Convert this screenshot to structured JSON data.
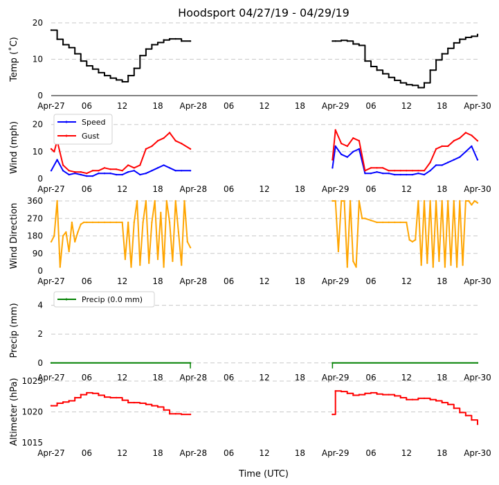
{
  "title": "Hoodsport 04/27/19 - 04/29/19",
  "xlabel": "Time (UTC)",
  "x_ticks": [
    {
      "hour": 0,
      "label": "Apr-27"
    },
    {
      "hour": 6,
      "label": "06"
    },
    {
      "hour": 12,
      "label": "12"
    },
    {
      "hour": 18,
      "label": "18"
    },
    {
      "hour": 24,
      "label": "Apr-28"
    },
    {
      "hour": 30,
      "label": "06"
    },
    {
      "hour": 36,
      "label": "12"
    },
    {
      "hour": 42,
      "label": "18"
    },
    {
      "hour": 48,
      "label": "Apr-29"
    },
    {
      "hour": 54,
      "label": "06"
    },
    {
      "hour": 60,
      "label": "12"
    },
    {
      "hour": 66,
      "label": "18"
    },
    {
      "hour": 72,
      "label": "Apr-30"
    }
  ],
  "chart_data": [
    {
      "type": "line",
      "key": "temp",
      "ylabel": "Temp ($^\\circ$C)",
      "ylabel_display": "Temp (˚C)",
      "ylim": [
        0,
        20
      ],
      "yticks": [
        0,
        10,
        20
      ],
      "x_range_hours": [
        0,
        72
      ],
      "grid": true,
      "series": [
        {
          "name": "Temperature",
          "color": "#000000",
          "step": true,
          "x": [
            0,
            1,
            2,
            3,
            4,
            5,
            6,
            7,
            8,
            9,
            10,
            11,
            12,
            13,
            14,
            15,
            16,
            17,
            18,
            19,
            20,
            21,
            22,
            23.5
          ],
          "y": [
            18,
            15.5,
            14,
            13.2,
            11.5,
            9.5,
            8.2,
            7.3,
            6.3,
            5.5,
            4.8,
            4.3,
            3.8,
            5.5,
            7.5,
            11,
            12.8,
            14,
            14.6,
            15.3,
            15.6,
            15.6,
            15,
            15
          ]
        },
        {
          "name": "Temperature (Apr-29)",
          "color": "#000000",
          "step": true,
          "x": [
            47.5,
            48,
            49,
            50,
            51,
            52,
            53,
            54,
            55,
            56,
            57,
            58,
            59,
            60,
            61,
            62,
            63,
            64,
            65,
            66,
            67,
            68,
            69,
            70,
            71,
            72
          ],
          "y": [
            15,
            15,
            15.2,
            15,
            14.2,
            13.8,
            9.5,
            8,
            7,
            6,
            5,
            4.2,
            3.5,
            3,
            2.8,
            2.2,
            3.5,
            7,
            9.8,
            11.5,
            13,
            14.5,
            15.5,
            16,
            16.3,
            16.8
          ]
        }
      ]
    },
    {
      "type": "line",
      "key": "wind",
      "ylabel": "Wind (mph)",
      "ylim": [
        0,
        23
      ],
      "yticks": [
        0,
        10,
        20
      ],
      "x_range_hours": [
        0,
        72
      ],
      "grid": true,
      "legend": {
        "placement": "top-left",
        "entries": [
          "Speed",
          "Gust"
        ]
      },
      "series": [
        {
          "name": "Speed",
          "color": "#0000ff",
          "x": [
            0,
            1,
            2,
            3,
            4,
            5,
            6,
            7,
            8,
            9,
            10,
            11,
            12,
            13,
            14,
            15,
            16,
            17,
            18,
            19,
            20,
            21,
            22,
            23.5
          ],
          "y": [
            3,
            7,
            3,
            1.5,
            2,
            1.5,
            1,
            1,
            2,
            2,
            2,
            1.5,
            1.5,
            2.5,
            3,
            1.5,
            2,
            3,
            4,
            5,
            4,
            3,
            3,
            3
          ]
        },
        {
          "name": "Gust",
          "color": "#ff0000",
          "x": [
            0,
            0.5,
            1,
            2,
            3,
            4,
            5,
            6,
            7,
            8,
            9,
            10,
            11,
            12,
            13,
            14,
            15,
            16,
            17,
            18,
            19,
            20,
            21,
            22,
            23.5
          ],
          "y": [
            11,
            10,
            14,
            5,
            3,
            2.5,
            2.5,
            2,
            3,
            3,
            4,
            3.5,
            3.5,
            3,
            5,
            4,
            5,
            11,
            12,
            14,
            15,
            17,
            14,
            13,
            11
          ]
        },
        {
          "name": "Speed (Apr-29)",
          "color": "#0000ff",
          "x": [
            47.5,
            48,
            49,
            50,
            51,
            52,
            53,
            54,
            55,
            56,
            57,
            58,
            59,
            60,
            61,
            62,
            63,
            64,
            65,
            66,
            67,
            68,
            69,
            70,
            71,
            72
          ],
          "y": [
            4,
            12,
            9,
            8,
            10,
            11,
            2,
            2,
            2.5,
            2,
            2,
            1.5,
            1.5,
            1.5,
            1.5,
            2,
            1.5,
            3,
            5,
            5,
            6,
            7,
            8,
            10,
            12,
            7
          ]
        },
        {
          "name": "Gust (Apr-29)",
          "color": "#ff0000",
          "x": [
            47.5,
            48,
            49,
            50,
            51,
            52,
            53,
            54,
            55,
            56,
            57,
            58,
            59,
            60,
            61,
            62,
            63,
            64,
            65,
            66,
            67,
            68,
            69,
            70,
            71,
            72
          ],
          "y": [
            7,
            18,
            13,
            12,
            15,
            14,
            3,
            4,
            4,
            4,
            3,
            3,
            3,
            3,
            3,
            3,
            3,
            6,
            11,
            12,
            12,
            14,
            15,
            17,
            16,
            14
          ]
        }
      ]
    },
    {
      "type": "line",
      "key": "wdir",
      "ylabel": "Wind Direction",
      "ylim": [
        0,
        360
      ],
      "yticks": [
        0,
        90,
        180,
        270,
        360
      ],
      "x_range_hours": [
        0,
        72
      ],
      "grid": true,
      "series": [
        {
          "name": "Wind Direction",
          "color": "#ffa500",
          "x": [
            0,
            0.5,
            1,
            1.5,
            2,
            2.5,
            3,
            3.5,
            4,
            4.5,
            5,
            5.5,
            6,
            7,
            8,
            9,
            10,
            11,
            12,
            12.5,
            13,
            13.5,
            14,
            14.5,
            15,
            15.5,
            16,
            16.5,
            17,
            17.5,
            18,
            18.5,
            19,
            19.5,
            20,
            20.5,
            21,
            21.5,
            22,
            22.5,
            23,
            23.5
          ],
          "y": [
            150,
            180,
            360,
            20,
            180,
            200,
            100,
            250,
            150,
            200,
            240,
            250,
            250,
            250,
            250,
            250,
            250,
            250,
            250,
            60,
            250,
            20,
            250,
            360,
            30,
            250,
            360,
            40,
            250,
            360,
            60,
            300,
            20,
            360,
            250,
            50,
            360,
            200,
            30,
            360,
            150,
            120
          ]
        },
        {
          "name": "Wind Direction (Apr-29)",
          "color": "#ffa500",
          "x": [
            47.5,
            48,
            48.5,
            49,
            49.5,
            50,
            50.5,
            51,
            51.5,
            52,
            52.5,
            53,
            54,
            55,
            56,
            57,
            58,
            59,
            60,
            60.5,
            61,
            61.5,
            62,
            62.5,
            63,
            63.5,
            64,
            64.5,
            65,
            65.5,
            66,
            66.5,
            67,
            67.5,
            68,
            68.5,
            69,
            69.5,
            70,
            70.5,
            71,
            71.5,
            72
          ],
          "y": [
            360,
            360,
            100,
            360,
            360,
            20,
            360,
            50,
            20,
            360,
            270,
            270,
            260,
            250,
            250,
            250,
            250,
            250,
            250,
            160,
            150,
            160,
            360,
            30,
            360,
            40,
            360,
            20,
            360,
            50,
            360,
            20,
            360,
            30,
            360,
            20,
            360,
            30,
            360,
            360,
            340,
            360,
            350
          ]
        }
      ]
    },
    {
      "type": "line",
      "key": "precip",
      "ylabel": "Precip (mm)",
      "ylim": [
        -0.3,
        4.8
      ],
      "yticks": [
        0,
        2,
        4
      ],
      "x_range_hours": [
        0,
        72
      ],
      "grid": true,
      "legend": {
        "placement": "top-left",
        "entries": [
          "Precip (0.0 mm)"
        ]
      },
      "series": [
        {
          "name": "Precip (0.0 mm)",
          "color": "#008000",
          "x": [
            0,
            23.5
          ],
          "y": [
            0,
            0
          ]
        },
        {
          "name": "Precip (Apr-29)",
          "color": "#008000",
          "x": [
            47.5,
            72
          ],
          "y": [
            0,
            0
          ]
        }
      ]
    },
    {
      "type": "line",
      "key": "alt",
      "ylabel": "Altimeter (hPa)",
      "ylim": [
        1015,
        1025
      ],
      "yticks": [
        1015,
        1020,
        1025
      ],
      "x_range_hours": [
        0,
        72
      ],
      "grid": true,
      "series": [
        {
          "name": "Altimeter",
          "color": "#ff0000",
          "step": true,
          "x": [
            0,
            1,
            2,
            3,
            4,
            5,
            6,
            7,
            8,
            9,
            10,
            11,
            12,
            13,
            14,
            15,
            16,
            17,
            18,
            19,
            20,
            21,
            22,
            23.5
          ],
          "y": [
            1021,
            1021.4,
            1021.6,
            1021.8,
            1022.3,
            1022.8,
            1023.1,
            1023,
            1022.7,
            1022.4,
            1022.3,
            1022.3,
            1021.9,
            1021.5,
            1021.5,
            1021.4,
            1021.2,
            1021,
            1020.8,
            1020.3,
            1019.7,
            1019.7,
            1019.6,
            1019.6
          ]
        },
        {
          "name": "Altimeter (Apr-29)",
          "color": "#ff0000",
          "step": true,
          "x": [
            47.5,
            48,
            49,
            50,
            51,
            52,
            53,
            54,
            55,
            56,
            57,
            58,
            59,
            60,
            61,
            62,
            63,
            64,
            65,
            66,
            67,
            68,
            69,
            70,
            71,
            72
          ],
          "y": [
            1019.6,
            1023.4,
            1023.3,
            1023,
            1022.7,
            1022.8,
            1023,
            1023.1,
            1022.9,
            1022.8,
            1022.8,
            1022.6,
            1022.3,
            1022,
            1022,
            1022.2,
            1022.2,
            1022,
            1021.8,
            1021.5,
            1021.2,
            1020.6,
            1019.9,
            1019.4,
            1018.7,
            1018
          ]
        }
      ]
    }
  ]
}
